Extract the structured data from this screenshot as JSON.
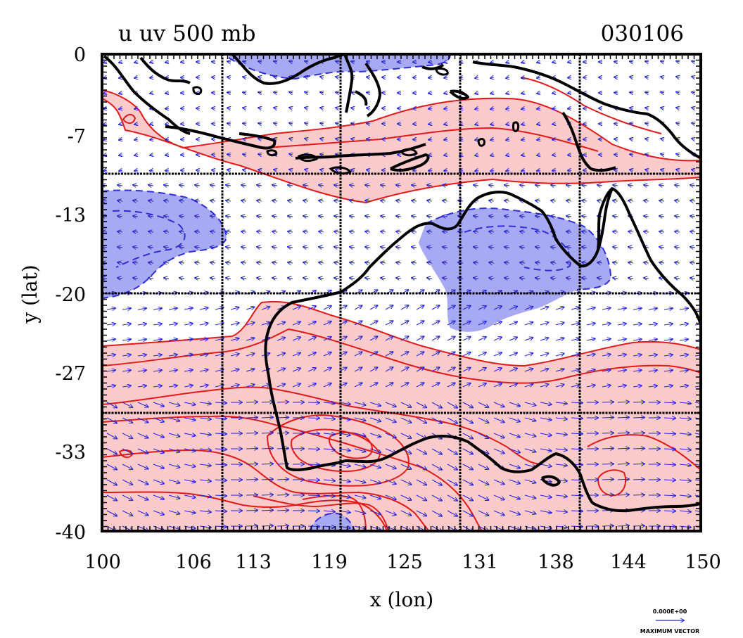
{
  "title_left": "u uv 500 mb",
  "title_right": "030106",
  "xlabel": "x (lon)",
  "ylabel": "y (lat)",
  "x_ticks": [
    "100",
    "106",
    "113",
    "119",
    "125",
    "131",
    "138",
    "144",
    "150"
  ],
  "y_ticks": [
    "0",
    "-7",
    "-13",
    "-20",
    "-27",
    "-33",
    "-40"
  ],
  "vector_legend": {
    "value": "0.000E+00",
    "caption": "MAXIMUM VECTOR"
  },
  "colors": {
    "positive_fill": "#fbcaca",
    "positive_contour": "#e31a1a",
    "negative_fill": "#a7a9f2",
    "negative_contour": "#2e2fd6",
    "vector": "#2323d8",
    "coast": "#000000",
    "grid": "#000000"
  },
  "chart_data": {
    "type": "map",
    "variable": "u uv 500 mb",
    "xlim": [
      100,
      150
    ],
    "ylim": [
      -40,
      0
    ],
    "grid": true
  }
}
